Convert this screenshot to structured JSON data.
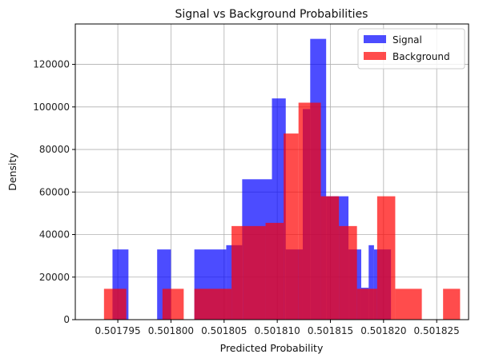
{
  "chart_data": {
    "type": "bar",
    "title": "Signal vs Background Probabilities",
    "xlabel": "Predicted Probability",
    "ylabel": "Density",
    "xlim": [
      0.501791,
      0.501828
    ],
    "ylim": [
      0,
      139000
    ],
    "grid": true,
    "legend_position": "top-right",
    "x_ticks": [
      0.501795,
      0.5018,
      0.501805,
      0.50181,
      0.501815,
      0.50182,
      0.501825
    ],
    "x_tick_labels": [
      "0.501795",
      "0.501800",
      "0.501805",
      "0.501810",
      "0.501815",
      "0.501820",
      "0.501825"
    ],
    "y_ticks": [
      0,
      20000,
      40000,
      60000,
      80000,
      100000,
      120000
    ],
    "y_tick_labels": [
      "0",
      "20000",
      "40000",
      "60000",
      "80000",
      "100000",
      "120000"
    ],
    "series": [
      {
        "name": "Signal",
        "color": "#0000ff",
        "opacity": 0.7,
        "bins": [
          {
            "x0": 0.5017945,
            "x1": 0.501796,
            "y": 33000
          },
          {
            "x0": 0.5017987,
            "x1": 0.5018,
            "y": 33000
          },
          {
            "x0": 0.5018022,
            "x1": 0.5018052,
            "y": 33000
          },
          {
            "x0": 0.5018052,
            "x1": 0.5018067,
            "y": 35000
          },
          {
            "x0": 0.5018067,
            "x1": 0.5018095,
            "y": 66000
          },
          {
            "x0": 0.5018095,
            "x1": 0.5018108,
            "y": 104000
          },
          {
            "x0": 0.5018108,
            "x1": 0.5018124,
            "y": 33000
          },
          {
            "x0": 0.5018124,
            "x1": 0.5018131,
            "y": 99000
          },
          {
            "x0": 0.5018131,
            "x1": 0.5018146,
            "y": 132000
          },
          {
            "x0": 0.5018146,
            "x1": 0.5018167,
            "y": 58000
          },
          {
            "x0": 0.5018167,
            "x1": 0.5018179,
            "y": 33000
          },
          {
            "x0": 0.5018179,
            "x1": 0.5018186,
            "y": 15000
          },
          {
            "x0": 0.5018186,
            "x1": 0.5018191,
            "y": 35000
          },
          {
            "x0": 0.5018191,
            "x1": 0.5018207,
            "y": 33000
          }
        ]
      },
      {
        "name": "Background",
        "color": "#ff0000",
        "opacity": 0.7,
        "bins": [
          {
            "x0": 0.5017937,
            "x1": 0.5017958,
            "y": 14500
          },
          {
            "x0": 0.5017992,
            "x1": 0.5018012,
            "y": 14500
          },
          {
            "x0": 0.5018022,
            "x1": 0.5018057,
            "y": 14500
          },
          {
            "x0": 0.5018057,
            "x1": 0.5018068,
            "y": 44000
          },
          {
            "x0": 0.5018068,
            "x1": 0.5018089,
            "y": 44000
          },
          {
            "x0": 0.5018089,
            "x1": 0.5018106,
            "y": 45500
          },
          {
            "x0": 0.5018106,
            "x1": 0.501812,
            "y": 87500
          },
          {
            "x0": 0.501812,
            "x1": 0.5018141,
            "y": 102000
          },
          {
            "x0": 0.5018141,
            "x1": 0.5018158,
            "y": 58000
          },
          {
            "x0": 0.5018158,
            "x1": 0.5018175,
            "y": 44000
          },
          {
            "x0": 0.5018175,
            "x1": 0.5018194,
            "y": 14500
          },
          {
            "x0": 0.5018194,
            "x1": 0.5018211,
            "y": 58000
          },
          {
            "x0": 0.5018211,
            "x1": 0.5018236,
            "y": 14500
          },
          {
            "x0": 0.5018256,
            "x1": 0.5018272,
            "y": 14500
          }
        ]
      }
    ]
  }
}
